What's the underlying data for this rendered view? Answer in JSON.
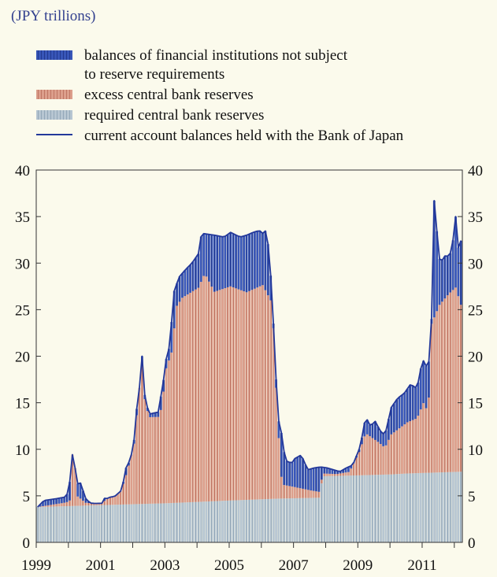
{
  "chart_data": {
    "type": "bar",
    "stacked": true,
    "unit_label": "(JPY trillions)",
    "title": "",
    "xlabel": "",
    "ylabel": "",
    "ylim": [
      0,
      40
    ],
    "yticks": [
      0,
      5,
      10,
      15,
      20,
      25,
      30,
      35,
      40
    ],
    "y_axis_both_sides": true,
    "grid": false,
    "legend_position": "top",
    "xlim": [
      1999.0,
      2012.25
    ],
    "xtick_labels": [
      "1999",
      "2001",
      "2003",
      "2005",
      "2007",
      "2009",
      "2011"
    ],
    "xtick_values": [
      1999,
      2001,
      2003,
      2005,
      2007,
      2009,
      2011
    ],
    "colors": {
      "required_reserves": "#a9bccb",
      "excess_reserves": "#d18b78",
      "non_subject_balances": "#2e4aa5",
      "current_account_line": "#23389a"
    },
    "series": [
      {
        "name": "balances of financial institutions not subject to reserve requirements",
        "kind": "bar",
        "color_key": "non_subject_balances"
      },
      {
        "name": "excess central bank reserves",
        "kind": "bar",
        "color_key": "excess_reserves"
      },
      {
        "name": "required central bank reserves",
        "kind": "bar",
        "color_key": "required_reserves"
      },
      {
        "name": "current account balances held with the Bank of Japan",
        "kind": "line",
        "color_key": "current_account_line"
      }
    ],
    "frequency": "monthly",
    "start": "1999-01",
    "required_knots": [
      [
        1999.0,
        3.8
      ],
      [
        2001.0,
        4.0
      ],
      [
        2003.0,
        4.2
      ],
      [
        2005.0,
        4.5
      ],
      [
        2006.5,
        4.7
      ],
      [
        2007.8,
        4.8
      ],
      [
        2007.85,
        7.1
      ],
      [
        2009.0,
        7.2
      ],
      [
        2010.0,
        7.3
      ],
      [
        2010.5,
        7.4
      ],
      [
        2012.25,
        7.6
      ]
    ],
    "excess_knots": [
      [
        1999.0,
        0.0
      ],
      [
        1999.9,
        0.4
      ],
      [
        2000.0,
        0.6
      ],
      [
        2000.1,
        6.5
      ],
      [
        2000.25,
        1.0
      ],
      [
        2000.5,
        0.3
      ],
      [
        2000.8,
        0.2
      ],
      [
        2001.0,
        0.2
      ],
      [
        2001.2,
        0.8
      ],
      [
        2001.4,
        0.9
      ],
      [
        2001.6,
        1.5
      ],
      [
        2001.8,
        3.7
      ],
      [
        2002.0,
        6.5
      ],
      [
        2002.15,
        12.0
      ],
      [
        2002.25,
        15.0
      ],
      [
        2002.35,
        10.5
      ],
      [
        2002.5,
        9.3
      ],
      [
        2002.8,
        9.3
      ],
      [
        2002.9,
        11.5
      ],
      [
        2003.0,
        14.5
      ],
      [
        2003.2,
        16.5
      ],
      [
        2003.3,
        21.0
      ],
      [
        2003.5,
        22.0
      ],
      [
        2004.0,
        23.0
      ],
      [
        2004.2,
        24.5
      ],
      [
        2004.5,
        22.5
      ],
      [
        2005.0,
        23.0
      ],
      [
        2005.5,
        22.3
      ],
      [
        2006.0,
        23.0
      ],
      [
        2006.3,
        21.0
      ],
      [
        2006.4,
        13.0
      ],
      [
        2006.5,
        6.5
      ],
      [
        2006.6,
        1.5
      ],
      [
        2007.0,
        1.2
      ],
      [
        2007.5,
        0.8
      ],
      [
        2007.8,
        0.6
      ],
      [
        2007.85,
        0.3
      ],
      [
        2008.3,
        0.2
      ],
      [
        2008.7,
        0.4
      ],
      [
        2009.0,
        2.5
      ],
      [
        2009.2,
        4.5
      ],
      [
        2009.4,
        4.0
      ],
      [
        2009.6,
        3.5
      ],
      [
        2009.8,
        2.9
      ],
      [
        2010.0,
        4.3
      ],
      [
        2010.5,
        5.5
      ],
      [
        2010.8,
        5.9
      ],
      [
        2011.0,
        7.5
      ],
      [
        2011.15,
        6.5
      ],
      [
        2011.25,
        16.0
      ],
      [
        2011.5,
        18.0
      ],
      [
        2011.8,
        19.2
      ],
      [
        2012.0,
        19.8
      ],
      [
        2012.25,
        17.0
      ]
    ],
    "line_knots": [
      [
        1999.0,
        3.8
      ],
      [
        1999.2,
        4.5
      ],
      [
        1999.6,
        4.7
      ],
      [
        1999.9,
        4.9
      ],
      [
        2000.0,
        6.5
      ],
      [
        2000.05,
        11.3
      ],
      [
        2000.15,
        5.5
      ],
      [
        2000.3,
        6.7
      ],
      [
        2000.5,
        4.7
      ],
      [
        2000.7,
        4.0
      ],
      [
        2000.9,
        3.7
      ],
      [
        2001.0,
        3.9
      ],
      [
        2001.1,
        4.9
      ],
      [
        2001.2,
        4.0
      ],
      [
        2001.3,
        4.8
      ],
      [
        2001.5,
        5.0
      ],
      [
        2001.6,
        5.3
      ],
      [
        2001.75,
        8.0
      ],
      [
        2001.9,
        9.0
      ],
      [
        2002.0,
        11.0
      ],
      [
        2002.1,
        15.0
      ],
      [
        2002.2,
        16.5
      ],
      [
        2002.25,
        20.0
      ],
      [
        2002.35,
        15.0
      ],
      [
        2002.5,
        13.8
      ],
      [
        2002.75,
        14.0
      ],
      [
        2002.9,
        17.0
      ],
      [
        2003.0,
        19.7
      ],
      [
        2003.1,
        21.0
      ],
      [
        2003.25,
        27.0
      ],
      [
        2003.4,
        28.5
      ],
      [
        2003.6,
        29.3
      ],
      [
        2003.8,
        30.0
      ],
      [
        2004.0,
        31.0
      ],
      [
        2004.1,
        33.2
      ],
      [
        2004.5,
        33.0
      ],
      [
        2004.8,
        32.8
      ],
      [
        2005.0,
        33.3
      ],
      [
        2005.3,
        32.8
      ],
      [
        2005.5,
        33.0
      ],
      [
        2005.7,
        33.3
      ],
      [
        2005.9,
        33.5
      ],
      [
        2006.0,
        33.2
      ],
      [
        2006.1,
        33.5
      ],
      [
        2006.2,
        31.3
      ],
      [
        2006.3,
        26.0
      ],
      [
        2006.4,
        18.5
      ],
      [
        2006.45,
        15.5
      ],
      [
        2006.5,
        13.0
      ],
      [
        2006.6,
        11.5
      ],
      [
        2006.7,
        8.8
      ],
      [
        2006.9,
        8.5
      ],
      [
        2007.0,
        9.0
      ],
      [
        2007.2,
        9.4
      ],
      [
        2007.4,
        7.8
      ],
      [
        2007.6,
        8.0
      ],
      [
        2007.8,
        8.1
      ],
      [
        2008.0,
        8.0
      ],
      [
        2008.2,
        7.8
      ],
      [
        2008.4,
        7.6
      ],
      [
        2008.6,
        8.0
      ],
      [
        2008.8,
        8.3
      ],
      [
        2009.0,
        10.0
      ],
      [
        2009.1,
        11.5
      ],
      [
        2009.2,
        13.5
      ],
      [
        2009.35,
        12.5
      ],
      [
        2009.5,
        13.0
      ],
      [
        2009.65,
        12.0
      ],
      [
        2009.8,
        11.5
      ],
      [
        2010.0,
        14.5
      ],
      [
        2010.2,
        15.5
      ],
      [
        2010.4,
        16.0
      ],
      [
        2010.6,
        17.0
      ],
      [
        2010.8,
        16.5
      ],
      [
        2010.9,
        18.5
      ],
      [
        2011.0,
        19.5
      ],
      [
        2011.15,
        18.5
      ],
      [
        2011.25,
        24.0
      ],
      [
        2011.3,
        36.0
      ],
      [
        2011.37,
        37.5
      ],
      [
        2011.45,
        30.5
      ],
      [
        2011.6,
        30.3
      ],
      [
        2011.7,
        31.0
      ],
      [
        2011.8,
        30.5
      ],
      [
        2011.95,
        33.0
      ],
      [
        2012.0,
        35.0
      ],
      [
        2012.1,
        31.0
      ],
      [
        2012.15,
        33.2
      ],
      [
        2012.25,
        28.5
      ]
    ]
  }
}
